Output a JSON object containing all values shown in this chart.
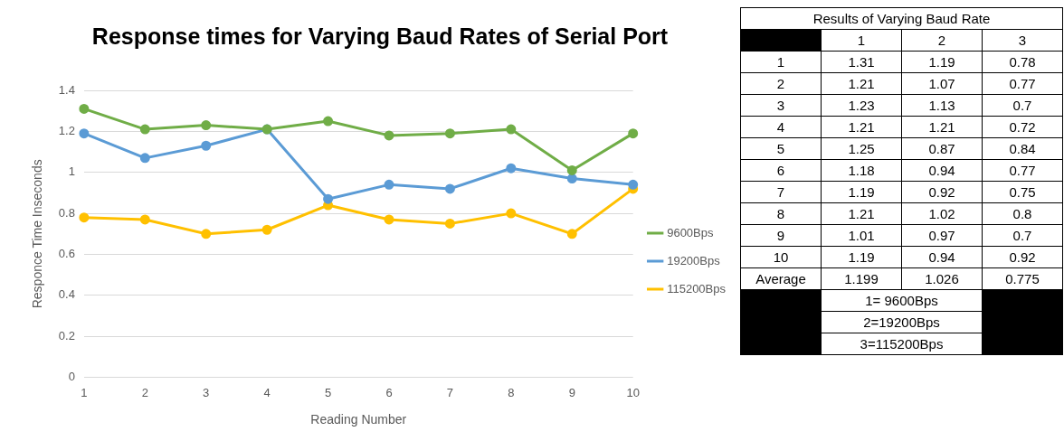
{
  "chart_data": [
    {
      "type": "line",
      "title": "Response times for Varying Baud Rates of Serial Port",
      "xlabel": "Reading Number",
      "ylabel": "Responce Time Inseconds",
      "categories": [
        "1",
        "2",
        "3",
        "4",
        "5",
        "6",
        "7",
        "8",
        "9",
        "10"
      ],
      "series": [
        {
          "name": "9600Bps",
          "color": "#70ad47",
          "values": [
            1.31,
            1.21,
            1.23,
            1.21,
            1.25,
            1.18,
            1.19,
            1.21,
            1.01,
            1.19
          ]
        },
        {
          "name": "19200Bps",
          "color": "#5b9bd5",
          "values": [
            1.19,
            1.07,
            1.13,
            1.21,
            0.87,
            0.94,
            0.92,
            1.02,
            0.97,
            0.94
          ]
        },
        {
          "name": "115200Bps",
          "color": "#ffc000",
          "values": [
            0.78,
            0.77,
            0.7,
            0.72,
            0.84,
            0.77,
            0.75,
            0.8,
            0.7,
            0.92
          ]
        }
      ],
      "ylim": [
        0,
        1.4
      ],
      "yticks": [
        0,
        0.2,
        0.4,
        0.6,
        0.8,
        1,
        1.2,
        1.4
      ],
      "grid": "y",
      "legend": "right",
      "marker": "circle",
      "line_style": "solid"
    },
    {
      "type": "heatmap",
      "title": "Results of Varying Baud Rate",
      "categories": [
        "1",
        "2",
        "3"
      ],
      "y_categories": [
        "1",
        "2",
        "3",
        "4",
        "5",
        "6",
        "7",
        "8",
        "9",
        "10",
        "Average"
      ],
      "cells": [
        [
          1.31,
          1.19,
          0.78
        ],
        [
          1.21,
          1.07,
          0.77
        ],
        [
          1.23,
          1.13,
          0.7
        ],
        [
          1.21,
          1.21,
          0.72
        ],
        [
          1.25,
          0.87,
          0.84
        ],
        [
          1.18,
          0.94,
          0.77
        ],
        [
          1.19,
          0.92,
          0.75
        ],
        [
          1.21,
          1.02,
          0.8
        ],
        [
          1.01,
          0.97,
          0.7
        ],
        [
          1.19,
          0.94,
          0.92
        ],
        [
          1.199,
          1.026,
          0.775
        ]
      ],
      "data_labels": true,
      "annotations": [
        "1= 9600Bps",
        "2=19200Bps",
        "3=115200Bps"
      ]
    }
  ]
}
